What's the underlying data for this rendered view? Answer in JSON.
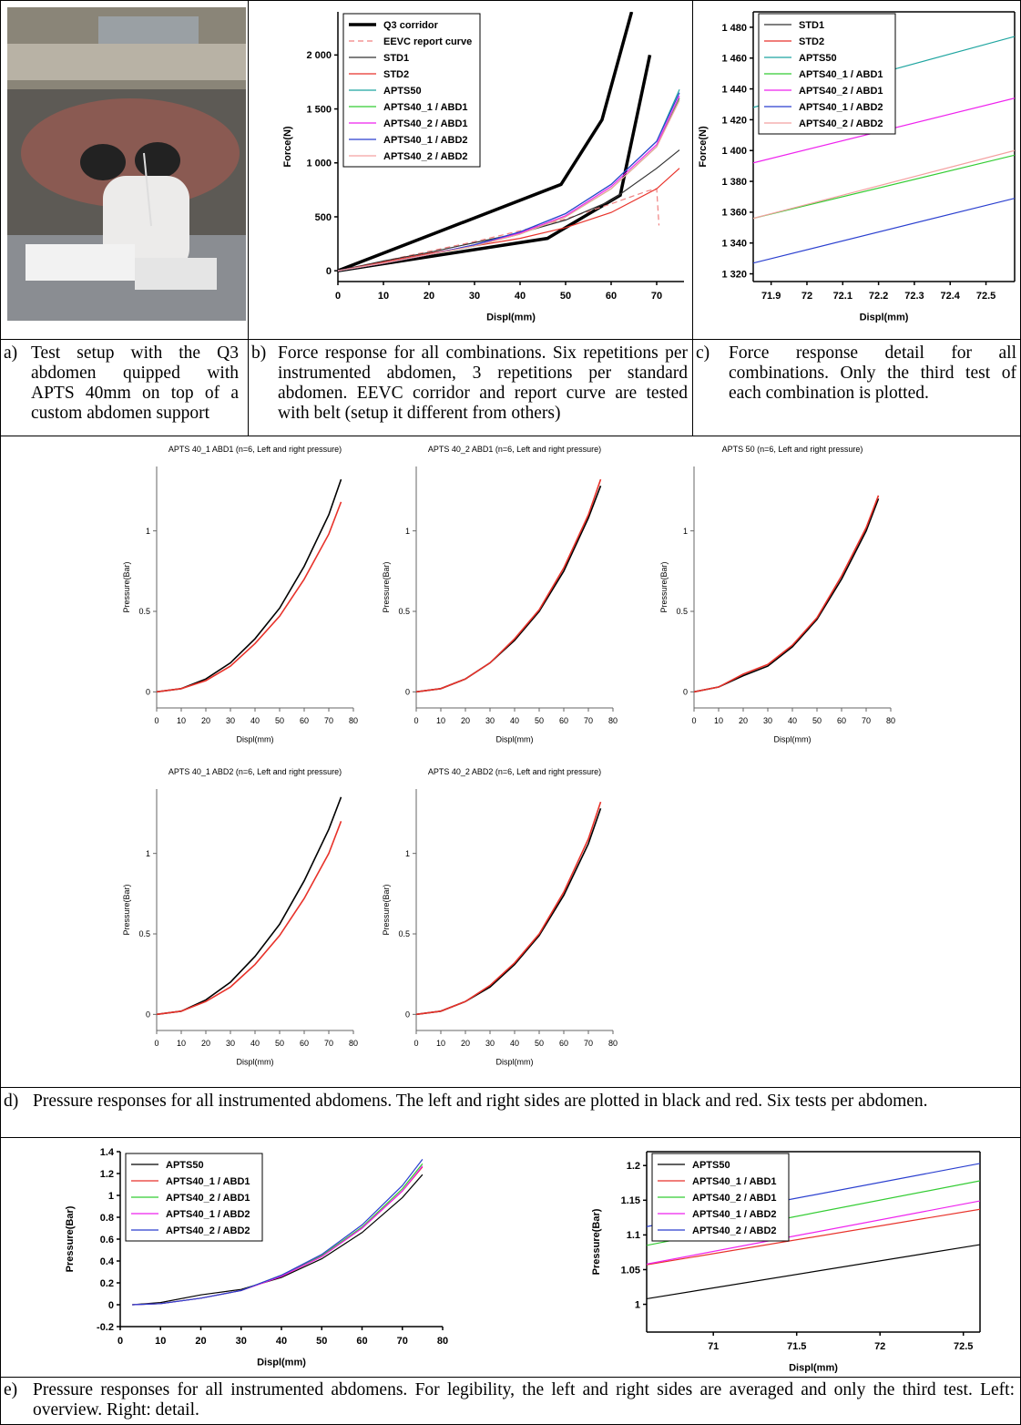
{
  "chart_data": [
    {
      "type": "line",
      "x_label": "Displ(mm)",
      "y_label": "Force(N)",
      "xlim": [
        0,
        76
      ],
      "ylim": [
        -100,
        2400
      ],
      "xticks": [
        0,
        10,
        20,
        30,
        40,
        50,
        60,
        70
      ],
      "yticks": [
        0,
        500,
        {
          "value": 1000,
          "label": "1 000"
        },
        {
          "value": 1500,
          "label": "1 500"
        },
        {
          "value": 2000,
          "label": "2 000"
        }
      ],
      "legend": "upper left",
      "series": [
        {
          "name": "Q3 corridor",
          "color": "#000000",
          "width": 3.5,
          "x": [
            0,
            49,
            58,
            64.5,
            64.5,
            0,
            46,
            62,
            68.5
          ],
          "values": [
            0,
            800,
            1400,
            2400,
            null,
            0,
            300,
            700,
            2000
          ]
        },
        {
          "name": "EEVC report curve",
          "color": "#f08080",
          "dash": true,
          "x": [
            0,
            10,
            20,
            30,
            40,
            50,
            60,
            68,
            70,
            70.5
          ],
          "values": [
            0,
            90,
            180,
            270,
            370,
            480,
            620,
            740,
            760,
            420
          ]
        },
        {
          "name": "STD1",
          "color": "#333333",
          "x": [
            0,
            10,
            20,
            30,
            40,
            50,
            60,
            70,
            75
          ],
          "values": [
            0,
            90,
            170,
            260,
            350,
            470,
            650,
            950,
            1120
          ]
        },
        {
          "name": "STD2",
          "color": "#e8322a",
          "x": [
            0,
            10,
            20,
            30,
            40,
            50,
            60,
            70,
            75
          ],
          "values": [
            0,
            80,
            160,
            230,
            300,
            400,
            540,
            760,
            950
          ]
        },
        {
          "name": "APTS50",
          "color": "#1fa5a0",
          "x": [
            0,
            10,
            20,
            30,
            40,
            50,
            60,
            70,
            75
          ],
          "values": [
            0,
            70,
            150,
            240,
            360,
            530,
            800,
            1200,
            1680
          ]
        },
        {
          "name": "APTS40_1 / ABD1",
          "color": "#33cc33",
          "x": [
            0,
            10,
            20,
            30,
            40,
            50,
            60,
            70,
            75
          ],
          "values": [
            0,
            70,
            150,
            230,
            340,
            500,
            760,
            1150,
            1600
          ]
        },
        {
          "name": "APTS40_2 / ABD1",
          "color": "#ee22ee",
          "x": [
            0,
            10,
            20,
            30,
            40,
            50,
            60,
            70,
            75
          ],
          "values": [
            0,
            70,
            150,
            240,
            350,
            510,
            780,
            1170,
            1620
          ]
        },
        {
          "name": "APTS40_1 / ABD2",
          "color": "#2a3fcf",
          "x": [
            0,
            10,
            20,
            30,
            40,
            50,
            60,
            70,
            75
          ],
          "values": [
            0,
            70,
            150,
            240,
            360,
            530,
            800,
            1200,
            1650
          ]
        },
        {
          "name": "APTS40_2 / ABD2",
          "color": "#f4a0a0",
          "x": [
            0,
            10,
            20,
            30,
            40,
            50,
            60,
            70,
            75
          ],
          "values": [
            0,
            70,
            150,
            230,
            340,
            500,
            760,
            1150,
            1580
          ]
        }
      ]
    },
    {
      "type": "line",
      "x_label": "Displ(mm)",
      "y_label": "Force(N)",
      "xlim": [
        71.85,
        72.58
      ],
      "ylim": [
        1315,
        1490
      ],
      "xticks": [
        71.9,
        72,
        72.1,
        72.2,
        72.3,
        72.4,
        72.5
      ],
      "yticks": [
        {
          "value": 1320,
          "label": "1 320"
        },
        {
          "value": 1340,
          "label": "1 340"
        },
        {
          "value": 1360,
          "label": "1 360"
        },
        {
          "value": 1380,
          "label": "1 380"
        },
        {
          "value": 1400,
          "label": "1 400"
        },
        {
          "value": 1420,
          "label": "1 420"
        },
        {
          "value": 1440,
          "label": "1 440"
        },
        {
          "value": 1460,
          "label": "1 460"
        },
        {
          "value": 1480,
          "label": "1 480"
        }
      ],
      "legend": "upper left",
      "series": [
        {
          "name": "STD1",
          "color": "#333333",
          "x": [],
          "values": []
        },
        {
          "name": "STD2",
          "color": "#e8322a",
          "x": [],
          "values": []
        },
        {
          "name": "APTS50",
          "color": "#1fa5a0",
          "x": [
            71.85,
            72.58
          ],
          "values": [
            1428,
            1474
          ]
        },
        {
          "name": "APTS40_1 / ABD1",
          "color": "#33cc33",
          "x": [
            71.85,
            72.58
          ],
          "values": [
            1356,
            1397
          ]
        },
        {
          "name": "APTS40_2 / ABD1",
          "color": "#ee22ee",
          "x": [
            71.85,
            72.58
          ],
          "values": [
            1392,
            1434
          ]
        },
        {
          "name": "APTS40_1 / ABD2",
          "color": "#2a3fcf",
          "x": [
            71.85,
            72.58
          ],
          "values": [
            1327,
            1369
          ]
        },
        {
          "name": "APTS40_2 / ABD2",
          "color": "#f4a0a0",
          "x": [
            71.85,
            72.58
          ],
          "values": [
            1356,
            1400
          ]
        }
      ]
    },
    {
      "type": "line",
      "title": "APTS 40_1 ABD1 (n=6, Left and right pressure)",
      "x_label": "Displ(mm)",
      "y_label": "Pressure(Bar)",
      "xlim": [
        0,
        80
      ],
      "ylim": [
        -0.1,
        1.4
      ],
      "xticks": [
        0,
        10,
        20,
        30,
        40,
        50,
        60,
        70,
        80
      ],
      "yticks": [
        0,
        0.5,
        1
      ],
      "series": [
        {
          "color": "#000000",
          "x": [
            0,
            10,
            20,
            30,
            40,
            50,
            60,
            70,
            75
          ],
          "values": [
            0,
            0.02,
            0.08,
            0.18,
            0.33,
            0.52,
            0.78,
            1.1,
            1.32
          ]
        },
        {
          "color": "#e8322a",
          "x": [
            0,
            10,
            20,
            30,
            40,
            50,
            60,
            70,
            75
          ],
          "values": [
            0,
            0.02,
            0.07,
            0.16,
            0.3,
            0.47,
            0.7,
            0.98,
            1.18
          ]
        }
      ]
    },
    {
      "type": "line",
      "title": "APTS 40_2 ABD1 (n=6, Left and right pressure)",
      "x_label": "Displ(mm)",
      "y_label": "Pressure(Bar)",
      "xlim": [
        0,
        80
      ],
      "ylim": [
        -0.1,
        1.4
      ],
      "xticks": [
        0,
        10,
        20,
        30,
        40,
        50,
        60,
        70,
        80
      ],
      "yticks": [
        0,
        0.5,
        1
      ],
      "series": [
        {
          "color": "#000000",
          "x": [
            0,
            10,
            20,
            30,
            40,
            50,
            60,
            70,
            75
          ],
          "values": [
            0,
            0.02,
            0.08,
            0.18,
            0.32,
            0.5,
            0.75,
            1.08,
            1.28
          ]
        },
        {
          "color": "#e8322a",
          "x": [
            0,
            10,
            20,
            30,
            40,
            50,
            60,
            70,
            75
          ],
          "values": [
            0,
            0.02,
            0.08,
            0.18,
            0.33,
            0.51,
            0.77,
            1.1,
            1.32
          ]
        }
      ]
    },
    {
      "type": "line",
      "title": "APTS 50 (n=6, Left and right pressure)",
      "x_label": "Displ(mm)",
      "y_label": "Pressure(Bar)",
      "xlim": [
        0,
        80
      ],
      "ylim": [
        -0.1,
        1.4
      ],
      "xticks": [
        0,
        10,
        20,
        30,
        40,
        50,
        60,
        70,
        80
      ],
      "yticks": [
        0,
        0.5,
        1
      ],
      "series": [
        {
          "color": "#000000",
          "x": [
            0,
            10,
            20,
            30,
            40,
            50,
            60,
            70,
            75
          ],
          "values": [
            0,
            0.03,
            0.1,
            0.16,
            0.28,
            0.45,
            0.7,
            1.0,
            1.2
          ]
        },
        {
          "color": "#e8322a",
          "x": [
            0,
            10,
            20,
            30,
            40,
            50,
            60,
            70,
            75
          ],
          "values": [
            0,
            0.03,
            0.11,
            0.17,
            0.29,
            0.46,
            0.72,
            1.02,
            1.22
          ]
        }
      ]
    },
    {
      "type": "line",
      "title": "APTS 40_1 ABD2 (n=6, Left and right pressure)",
      "x_label": "Displ(mm)",
      "y_label": "Pressure(Bar)",
      "xlim": [
        0,
        80
      ],
      "ylim": [
        -0.1,
        1.4
      ],
      "xticks": [
        0,
        10,
        20,
        30,
        40,
        50,
        60,
        70,
        80
      ],
      "yticks": [
        0,
        0.5,
        1
      ],
      "series": [
        {
          "color": "#000000",
          "x": [
            0,
            10,
            20,
            30,
            40,
            50,
            60,
            70,
            75
          ],
          "values": [
            0,
            0.02,
            0.09,
            0.2,
            0.36,
            0.56,
            0.83,
            1.15,
            1.35
          ]
        },
        {
          "color": "#e8322a",
          "x": [
            0,
            10,
            20,
            30,
            40,
            50,
            60,
            70,
            75
          ],
          "values": [
            0,
            0.02,
            0.08,
            0.17,
            0.31,
            0.49,
            0.72,
            1.0,
            1.2
          ]
        }
      ]
    },
    {
      "type": "line",
      "title": "APTS 40_2 ABD2 (n=6, Left and right pressure)",
      "x_label": "Displ(mm)",
      "y_label": "Pressure(Bar)",
      "xlim": [
        0,
        80
      ],
      "ylim": [
        -0.1,
        1.4
      ],
      "xticks": [
        0,
        10,
        20,
        30,
        40,
        50,
        60,
        70,
        80
      ],
      "yticks": [
        0,
        0.5,
        1
      ],
      "series": [
        {
          "color": "#000000",
          "x": [
            0,
            10,
            20,
            30,
            40,
            50,
            60,
            70,
            75
          ],
          "values": [
            0,
            0.02,
            0.08,
            0.17,
            0.31,
            0.49,
            0.74,
            1.06,
            1.28
          ]
        },
        {
          "color": "#e8322a",
          "x": [
            0,
            10,
            20,
            30,
            40,
            50,
            60,
            70,
            75
          ],
          "values": [
            0,
            0.02,
            0.08,
            0.18,
            0.32,
            0.5,
            0.76,
            1.09,
            1.32
          ]
        }
      ]
    },
    {
      "type": "line",
      "x_label": "Displ(mm)",
      "y_label": "Pressure(Bar)",
      "xlim": [
        0,
        80
      ],
      "ylim": [
        -0.2,
        1.4
      ],
      "xticks": [
        0,
        10,
        20,
        30,
        40,
        50,
        60,
        70,
        80
      ],
      "yticks": [
        -0.2,
        0,
        0.2,
        0.4,
        0.6,
        0.8,
        1,
        1.2,
        1.4
      ],
      "legend": "upper left",
      "series": [
        {
          "name": "APTS50",
          "color": "#000000",
          "x": [
            3,
            10,
            20,
            30,
            40,
            50,
            60,
            70,
            75
          ],
          "values": [
            0,
            0.02,
            0.09,
            0.14,
            0.25,
            0.42,
            0.66,
            0.98,
            1.19
          ]
        },
        {
          "name": "APTS40_1 / ABD1",
          "color": "#e8322a",
          "x": [
            3,
            10,
            20,
            30,
            40,
            50,
            60,
            70,
            75
          ],
          "values": [
            0,
            0.01,
            0.06,
            0.13,
            0.26,
            0.44,
            0.7,
            1.04,
            1.26
          ]
        },
        {
          "name": "APTS40_2 / ABD1",
          "color": "#33cc33",
          "x": [
            3,
            10,
            20,
            30,
            40,
            50,
            60,
            70,
            75
          ],
          "values": [
            0,
            0.01,
            0.06,
            0.13,
            0.27,
            0.45,
            0.71,
            1.06,
            1.29
          ]
        },
        {
          "name": "APTS40_1 / ABD2",
          "color": "#ee22ee",
          "x": [
            3,
            10,
            20,
            30,
            40,
            50,
            60,
            70,
            75
          ],
          "values": [
            0,
            0.01,
            0.06,
            0.13,
            0.26,
            0.44,
            0.7,
            1.04,
            1.27
          ]
        },
        {
          "name": "APTS40_2 / ABD2",
          "color": "#2a3fcf",
          "x": [
            3,
            10,
            20,
            30,
            40,
            50,
            60,
            70,
            75
          ],
          "values": [
            0,
            0.01,
            0.06,
            0.13,
            0.27,
            0.46,
            0.73,
            1.09,
            1.33
          ]
        }
      ]
    },
    {
      "type": "line",
      "x_label": "Displ(mm)",
      "y_label": "Pressure(Bar)",
      "xlim": [
        70.6,
        72.6
      ],
      "ylim": [
        0.96,
        1.22
      ],
      "xticks": [
        71,
        71.5,
        72,
        72.5
      ],
      "yticks": [
        1,
        1.05,
        1.1,
        1.15,
        1.2
      ],
      "legend": "upper left",
      "series": [
        {
          "name": "APTS50",
          "color": "#000000",
          "x": [
            70.6,
            72.6
          ],
          "values": [
            1.008,
            1.086
          ]
        },
        {
          "name": "APTS40_1 / ABD1",
          "color": "#e8322a",
          "x": [
            70.6,
            72.6
          ],
          "values": [
            1.057,
            1.137
          ]
        },
        {
          "name": "APTS40_2 / ABD1",
          "color": "#33cc33",
          "x": [
            70.6,
            72.6
          ],
          "values": [
            1.085,
            1.178
          ]
        },
        {
          "name": "APTS40_1 / ABD2",
          "color": "#ee22ee",
          "x": [
            70.6,
            72.6
          ],
          "values": [
            1.058,
            1.149
          ]
        },
        {
          "name": "APTS40_2 / ABD2",
          "color": "#2a3fcf",
          "x": [
            70.6,
            72.6
          ],
          "values": [
            1.112,
            1.203
          ]
        }
      ]
    }
  ],
  "captions": [
    {
      "label": "a)",
      "text": "Test setup with the Q3 abdomen quipped with APTS 40mm on top of a custom abdomen support"
    },
    {
      "label": "b)",
      "text": "Force response for all combinations. Six repetitions per instrumented abdomen, 3 repetitions per standard abdomen. EEVC corridor and report curve are tested with belt (setup it different from others)"
    },
    {
      "label": "c)",
      "text": "Force response detail for all combinations. Only the third test of each combination is plotted."
    },
    {
      "label": "d)",
      "text": "Pressure responses for all instrumented abdomens. The left and right sides are plotted in black and red. Six tests per abdomen."
    },
    {
      "label": "e)",
      "text": "Pressure responses for all instrumented abdomens. For legibility, the left and right sides are averaged and only the third test. Left: overview. Right: detail."
    }
  ]
}
